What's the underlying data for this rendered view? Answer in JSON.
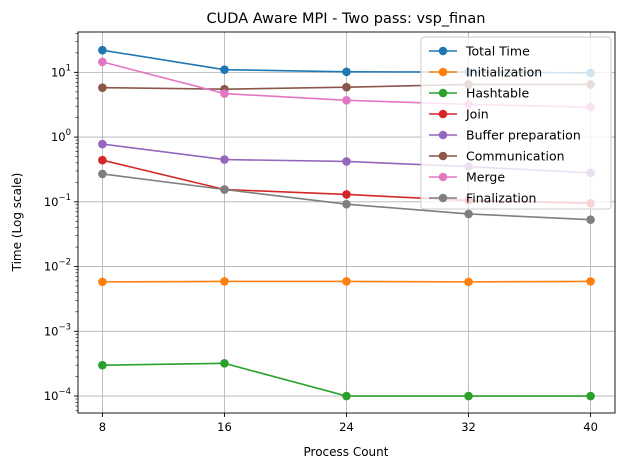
{
  "chart_data": {
    "type": "line",
    "title": "CUDA Aware MPI - Two pass: vsp_finan",
    "xlabel": "Process Count",
    "ylabel": "Time (Log scale)",
    "yscale": "log",
    "ylim": [
      5.47e-05,
      42
    ],
    "xlim": [
      6.4,
      41.6
    ],
    "grid": true,
    "legend_position": "top-right",
    "x": [
      8,
      16,
      24,
      32,
      40
    ],
    "x_tick_labels": [
      "8",
      "16",
      "24",
      "32",
      "40"
    ],
    "y_ticks": [
      {
        "value": 0.0001,
        "base": "10",
        "exp": "−4"
      },
      {
        "value": 0.001,
        "base": "10",
        "exp": "−3"
      },
      {
        "value": 0.01,
        "base": "10",
        "exp": "−2"
      },
      {
        "value": 0.1,
        "base": "10",
        "exp": "−1"
      },
      {
        "value": 1,
        "base": "10",
        "exp": "0"
      },
      {
        "value": 10,
        "base": "10",
        "exp": "1"
      }
    ],
    "series": [
      {
        "name": "Total Time",
        "color": "#1f77b4",
        "values": [
          22.0,
          11.0,
          10.2,
          10.1,
          9.8
        ]
      },
      {
        "name": "Initialization",
        "color": "#ff7f0e",
        "values": [
          0.0058,
          0.0059,
          0.0059,
          0.0058,
          0.0059
        ]
      },
      {
        "name": "Hashtable",
        "color": "#2ca02c",
        "values": [
          0.0003,
          0.00032,
          0.0001,
          0.0001,
          0.0001
        ]
      },
      {
        "name": "Join",
        "color": "#d62728",
        "values": [
          0.44,
          0.155,
          0.13,
          0.105,
          0.095
        ]
      },
      {
        "name": "Buffer preparation",
        "color": "#9467bd",
        "values": [
          0.78,
          0.45,
          0.42,
          0.35,
          0.28
        ]
      },
      {
        "name": "Communication",
        "color": "#8c564b",
        "values": [
          5.8,
          5.5,
          5.9,
          6.5,
          6.5
        ]
      },
      {
        "name": "Merge",
        "color": "#e377c2",
        "values": [
          14.5,
          4.7,
          3.7,
          3.2,
          2.9
        ]
      },
      {
        "name": "Finalization",
        "color": "#7f7f7f",
        "values": [
          0.27,
          0.155,
          0.092,
          0.065,
          0.053
        ]
      }
    ]
  }
}
